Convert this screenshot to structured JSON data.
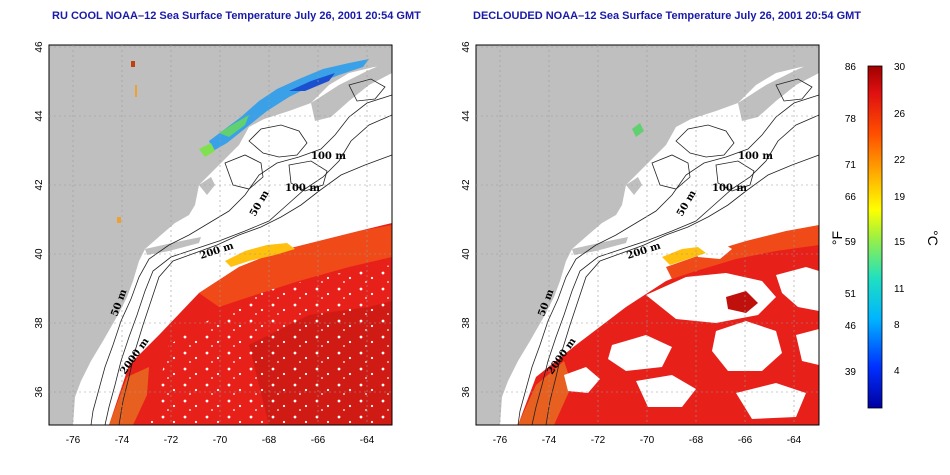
{
  "panels": [
    {
      "title": "RU COOL NOAA–12 Sea Surface Temperature July 26, 2001 20:54 GMT",
      "contour_labels": [
        "100 m",
        "100 m",
        "50 m",
        "200 m",
        "50 m",
        "2000 m"
      ]
    },
    {
      "title": "DECLOUDED NOAA–12 Sea Surface Temperature July 26, 2001 20:54 GMT",
      "contour_labels": [
        "100 m",
        "100 m",
        "50 m",
        "200 m",
        "50 m",
        "2000 m"
      ]
    }
  ],
  "axes": {
    "x_ticks": [
      "-76",
      "-74",
      "-72",
      "-70",
      "-68",
      "-66",
      "-64"
    ],
    "y_ticks": [
      "46",
      "44",
      "42",
      "40",
      "38",
      "36"
    ]
  },
  "colorbar": {
    "fahrenheit_label": "°F",
    "celsius_label": "°C",
    "fahrenheit_ticks": [
      "86",
      "78",
      "71",
      "66",
      "59",
      "51",
      "46",
      "39"
    ],
    "celsius_ticks": [
      "30",
      "26",
      "22",
      "19",
      "15",
      "11",
      "8",
      "4"
    ]
  },
  "colors": {
    "land": "#bfbfbf",
    "cloud_white": "#ffffff",
    "warm_water": "#e8201a",
    "hot_water": "#c8140f",
    "title_blue": "#1a1aa8"
  }
}
